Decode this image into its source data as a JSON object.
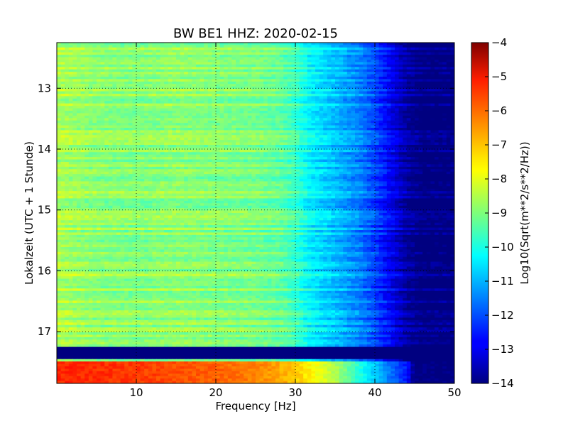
{
  "chart_data": {
    "type": "heatmap",
    "title": "BW BE1 HHZ: 2020-02-15",
    "xlabel": "Frequency [Hz]",
    "ylabel": "Lokalzeit (UTC + 1 Stunde)",
    "xlim": [
      0,
      50
    ],
    "ylim": [
      12.25,
      17.85
    ],
    "y_inverted": true,
    "x_ticks": [
      10,
      20,
      30,
      40,
      50
    ],
    "x_tick_labels": [
      "10",
      "20",
      "30",
      "40",
      "50"
    ],
    "y_ticks": [
      13,
      14,
      15,
      16,
      17
    ],
    "y_tick_labels": [
      "13",
      "14",
      "15",
      "16",
      "17"
    ],
    "grid": true,
    "colormap": "jet",
    "colorbar": {
      "label": "Log10(Sqrt(m**2/s**2/Hz))",
      "range": [
        -14,
        -4
      ],
      "ticks": [
        -4,
        -5,
        -6,
        -7,
        -8,
        -9,
        -10,
        -11,
        -12,
        -13,
        -14
      ],
      "tick_labels": [
        "−4",
        "−5",
        "−6",
        "−7",
        "−8",
        "−9",
        "−10",
        "−11",
        "−12",
        "−13",
        "−14"
      ]
    },
    "spectrum_profile": {
      "frequency_hz": [
        0,
        5,
        10,
        15,
        20,
        25,
        28,
        30,
        32,
        35,
        38,
        40,
        42,
        44,
        46,
        50
      ],
      "log10_amplitude": [
        -8.5,
        -8.8,
        -8.9,
        -8.8,
        -8.9,
        -9.0,
        -9.2,
        -9.6,
        -10.3,
        -10.8,
        -11.4,
        -12.0,
        -12.8,
        -13.6,
        -14.0,
        -14.0
      ]
    },
    "gap_band": {
      "from_hour": 17.25,
      "to_hour": 17.45,
      "log10_amplitude": -14
    },
    "late_band": {
      "from_hour": 17.48,
      "frequency_hz": [
        0,
        10,
        20,
        25,
        30,
        35,
        40,
        44,
        45,
        50
      ],
      "log10_amplitude": [
        -5.6,
        -5.8,
        -6.2,
        -6.5,
        -7.2,
        -8.5,
        -10.8,
        -12.5,
        -14.0,
        -14.0
      ]
    }
  }
}
